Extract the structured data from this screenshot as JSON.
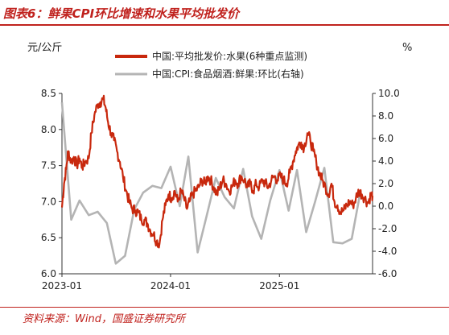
{
  "figure": {
    "title": "图表6：鲜果CPI环比增速和水果平均批发价",
    "source": "资料来源：Wind，国盛证券研究所"
  },
  "colors": {
    "accent": "#c0221e",
    "series_primary": "#c8280d",
    "series_secondary": "#b4b4b4"
  },
  "chart_data": {
    "type": "line",
    "y_left": {
      "unit": "元/公斤",
      "min": 6.0,
      "max": 8.5,
      "ticks": [
        6.0,
        6.5,
        7.0,
        7.5,
        8.0,
        8.5
      ]
    },
    "y_right": {
      "unit": "%",
      "min": -6.0,
      "max": 10.0,
      "ticks": [
        -6.0,
        -4.0,
        -2.0,
        0.0,
        2.0,
        4.0,
        6.0,
        8.0,
        10.0
      ]
    },
    "x_range": [
      "2023-01",
      "2025-11-10"
    ],
    "x_ticks": [
      "2023-01",
      "2024-01",
      "2025-01"
    ],
    "legend_placement": "top-center",
    "grid": false,
    "series": [
      {
        "name": "中国:平均批发价:水果(6种重点监测)",
        "axis": "left",
        "frequency": "daily",
        "x": [
          "2023-01-01",
          "2023-01-08",
          "2023-01-15",
          "2023-01-22",
          "2023-02-01",
          "2023-02-10",
          "2023-02-20",
          "2023-03-01",
          "2023-03-10",
          "2023-03-20",
          "2023-04-01",
          "2023-04-10",
          "2023-04-20",
          "2023-05-01",
          "2023-05-10",
          "2023-05-20",
          "2023-05-28",
          "2023-06-05",
          "2023-06-15",
          "2023-06-25",
          "2023-07-05",
          "2023-07-15",
          "2023-07-25",
          "2023-08-05",
          "2023-08-15",
          "2023-08-25",
          "2023-09-05",
          "2023-09-15",
          "2023-09-25",
          "2023-10-05",
          "2023-10-15",
          "2023-10-25",
          "2023-11-05",
          "2023-11-15",
          "2023-11-25",
          "2023-12-05",
          "2023-12-15",
          "2023-12-25",
          "2024-01-05",
          "2024-01-15",
          "2024-01-25",
          "2024-02-05",
          "2024-02-15",
          "2024-02-25",
          "2024-03-05",
          "2024-03-15",
          "2024-03-25",
          "2024-04-05",
          "2024-04-15",
          "2024-04-25",
          "2024-05-05",
          "2024-05-15",
          "2024-05-25",
          "2024-06-05",
          "2024-06-15",
          "2024-06-25",
          "2024-07-05",
          "2024-07-15",
          "2024-07-25",
          "2024-08-05",
          "2024-08-15",
          "2024-08-25",
          "2024-09-05",
          "2024-09-15",
          "2024-09-25",
          "2024-10-05",
          "2024-10-15",
          "2024-10-25",
          "2024-11-05",
          "2024-11-15",
          "2024-11-25",
          "2024-12-05",
          "2024-12-15",
          "2024-12-25",
          "2025-01-05",
          "2025-01-15",
          "2025-01-25",
          "2025-02-05",
          "2025-02-15",
          "2025-02-25",
          "2025-03-05",
          "2025-03-15",
          "2025-03-25",
          "2025-04-05",
          "2025-04-15",
          "2025-04-25",
          "2025-05-05",
          "2025-05-15",
          "2025-05-25",
          "2025-06-05",
          "2025-06-15",
          "2025-06-25",
          "2025-07-05",
          "2025-07-15",
          "2025-07-25",
          "2025-08-05",
          "2025-08-15",
          "2025-08-25",
          "2025-09-05",
          "2025-09-15",
          "2025-09-25",
          "2025-10-05",
          "2025-10-15",
          "2025-10-25",
          "2025-11-05",
          "2025-11-10"
        ],
        "values": [
          6.92,
          7.25,
          7.45,
          7.7,
          7.55,
          7.62,
          7.5,
          7.6,
          7.48,
          7.55,
          7.6,
          7.95,
          8.2,
          8.35,
          8.38,
          8.42,
          8.3,
          8.1,
          7.95,
          7.85,
          7.7,
          7.55,
          7.35,
          7.15,
          7.0,
          6.9,
          6.88,
          6.85,
          6.75,
          6.75,
          6.7,
          6.6,
          6.55,
          6.45,
          6.42,
          6.75,
          6.95,
          7.1,
          7.05,
          7.15,
          7.0,
          7.15,
          7.05,
          6.9,
          7.0,
          7.1,
          7.15,
          7.2,
          7.3,
          7.25,
          7.35,
          7.3,
          7.2,
          7.1,
          7.2,
          7.3,
          7.25,
          7.15,
          7.2,
          7.3,
          7.25,
          7.35,
          7.3,
          7.2,
          7.25,
          7.15,
          7.25,
          7.2,
          7.3,
          7.25,
          7.2,
          7.3,
          7.35,
          7.3,
          7.35,
          7.3,
          7.25,
          7.4,
          7.55,
          7.7,
          7.78,
          7.82,
          7.75,
          7.95,
          7.85,
          7.7,
          7.55,
          7.4,
          7.3,
          7.2,
          7.1,
          7.25,
          7.0,
          6.95,
          6.85,
          6.88,
          6.95,
          7.0,
          6.95,
          7.05,
          7.15,
          7.1,
          7.05,
          6.98,
          7.1,
          7.08
        ]
      },
      {
        "name": "中国:CPI:食品烟酒:鲜果:环比(右轴)",
        "axis": "right",
        "frequency": "monthly",
        "x": [
          "2023-01",
          "2023-02",
          "2023-03",
          "2023-04",
          "2023-05",
          "2023-06",
          "2023-07",
          "2023-08",
          "2023-09",
          "2023-10",
          "2023-11",
          "2023-12",
          "2024-01",
          "2024-02",
          "2024-03",
          "2024-04",
          "2024-05",
          "2024-06",
          "2024-07",
          "2024-08",
          "2024-09",
          "2024-10",
          "2024-11",
          "2024-12",
          "2025-01",
          "2025-02",
          "2025-03",
          "2025-04",
          "2025-05",
          "2025-06",
          "2025-07",
          "2025-08",
          "2025-09",
          "2025-10"
        ],
        "values": [
          9.2,
          -1.2,
          0.5,
          -0.8,
          -0.5,
          -1.5,
          -5.1,
          -4.4,
          -0.3,
          1.2,
          1.8,
          1.6,
          3.5,
          0.0,
          4.4,
          -4.1,
          -0.9,
          2.5,
          0.8,
          -0.2,
          3.3,
          -0.9,
          -2.9,
          0.5,
          3.2,
          -0.4,
          3.2,
          -2.3,
          0.4,
          3.4,
          -3.2,
          -3.3,
          -2.9,
          1.4
        ]
      }
    ]
  }
}
